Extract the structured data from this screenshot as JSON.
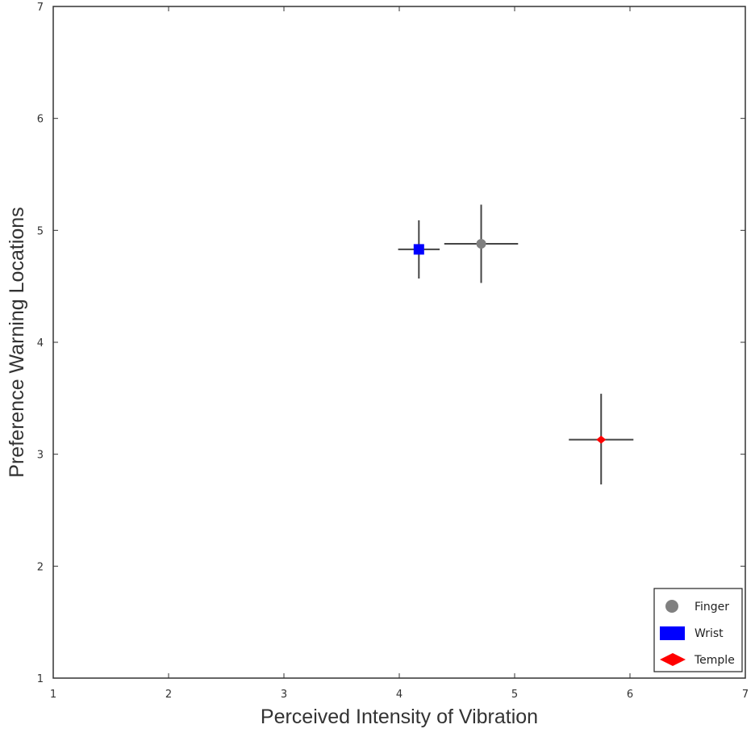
{
  "chart_data": {
    "type": "scatter",
    "title": "",
    "xlabel": "Perceived Intensity of Vibration",
    "ylabel": "Preference Warning Locations",
    "xlim": [
      1,
      7
    ],
    "ylim": [
      1,
      7
    ],
    "xticks": [
      1,
      2,
      3,
      4,
      5,
      6,
      7
    ],
    "yticks": [
      1,
      2,
      3,
      4,
      5,
      6,
      7
    ],
    "grid": false,
    "legend_position": "bottom-right",
    "series": [
      {
        "name": "Finger",
        "marker": "circle",
        "color": "#808080",
        "x": 4.71,
        "y": 4.88,
        "x_err": [
          4.39,
          5.03
        ],
        "y_err": [
          4.53,
          5.23
        ]
      },
      {
        "name": "Wrist",
        "marker": "square",
        "color": "#0000ff",
        "x": 4.17,
        "y": 4.83,
        "x_err": [
          3.99,
          4.35
        ],
        "y_err": [
          4.57,
          5.09
        ]
      },
      {
        "name": "Temple",
        "marker": "diamond",
        "color": "#ff0000",
        "x": 5.75,
        "y": 3.13,
        "x_err": [
          5.47,
          6.03
        ],
        "y_err": [
          2.73,
          3.54
        ]
      }
    ]
  },
  "colors": {
    "axis": "#333333",
    "errorbar": "#444444"
  }
}
